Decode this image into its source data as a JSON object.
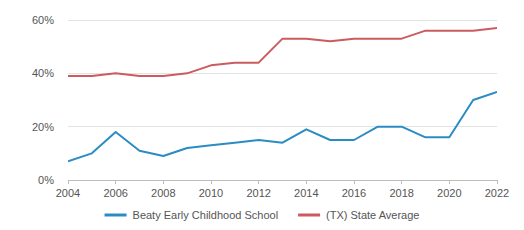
{
  "chart_data": {
    "type": "line",
    "x": [
      2004,
      2005,
      2006,
      2007,
      2008,
      2009,
      2010,
      2011,
      2012,
      2013,
      2014,
      2015,
      2016,
      2017,
      2018,
      2019,
      2020,
      2021,
      2022
    ],
    "series": [
      {
        "name": "Beaty Early Childhood School",
        "color": "#2b8cc4",
        "values": [
          7,
          10,
          18,
          11,
          9,
          12,
          13,
          14,
          15,
          14,
          19,
          15,
          15,
          20,
          20,
          16,
          16,
          30,
          33
        ]
      },
      {
        "name": "(TX) State Average",
        "color": "#cc5b60",
        "values": [
          39,
          39,
          40,
          39,
          39,
          40,
          43,
          44,
          44,
          53,
          53,
          52,
          53,
          53,
          53,
          56,
          56,
          56,
          57
        ]
      }
    ],
    "xlim": [
      2004,
      2022
    ],
    "xticks": [
      2004,
      2006,
      2008,
      2010,
      2012,
      2014,
      2016,
      2018,
      2020,
      2022
    ],
    "ylim": [
      0,
      60
    ],
    "yticks": [
      {
        "value": 0,
        "label": "0%"
      },
      {
        "value": 20,
        "label": "20%"
      },
      {
        "value": 40,
        "label": "40%"
      },
      {
        "value": 60,
        "label": "60%"
      }
    ],
    "grid": true,
    "legend": "bottom"
  }
}
